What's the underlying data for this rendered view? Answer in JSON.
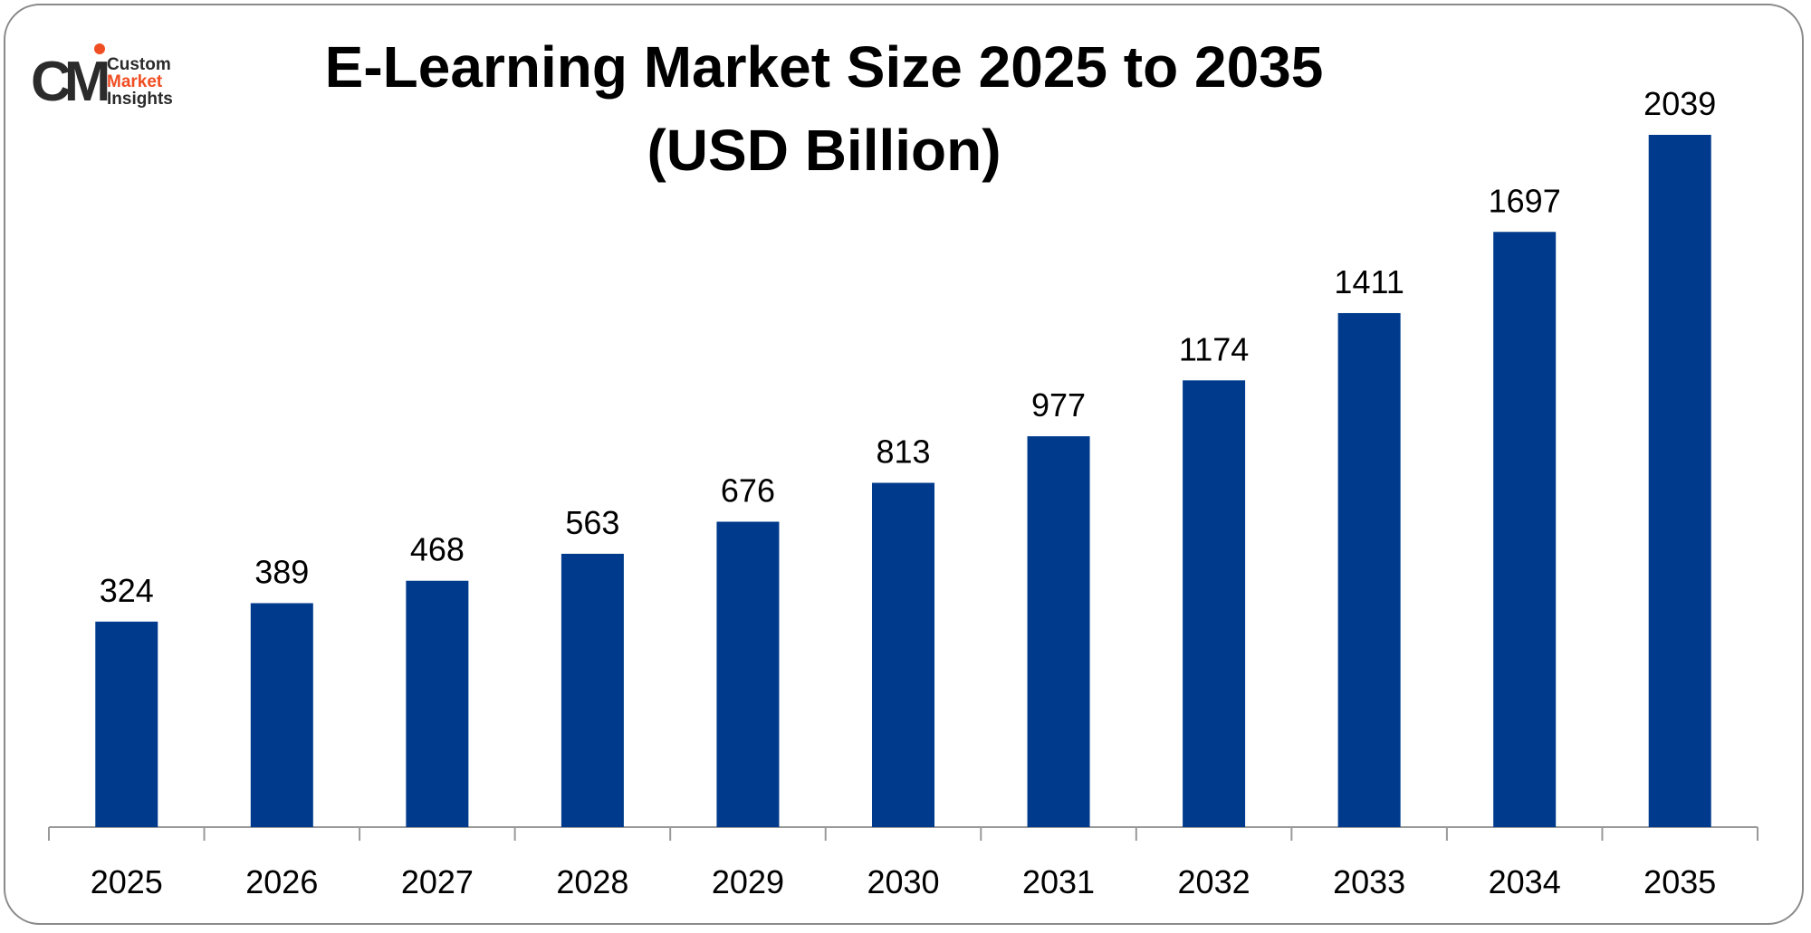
{
  "logo": {
    "mark": "CM",
    "line1": "Custom",
    "line2": "Market",
    "line3": "Insights"
  },
  "chart_data": {
    "type": "bar",
    "title": "E-Learning Market Size 2025 to 2035",
    "subtitle": "(USD Billion)",
    "categories": [
      "2025",
      "2026",
      "2027",
      "2028",
      "2029",
      "2030",
      "2031",
      "2032",
      "2033",
      "2034",
      "2035"
    ],
    "values": [
      324,
      389,
      468,
      563,
      676,
      813,
      977,
      1174,
      1411,
      1697,
      2039
    ],
    "data_labels": true,
    "grid": false,
    "legend": "none",
    "bar_color": "#003A8C"
  }
}
